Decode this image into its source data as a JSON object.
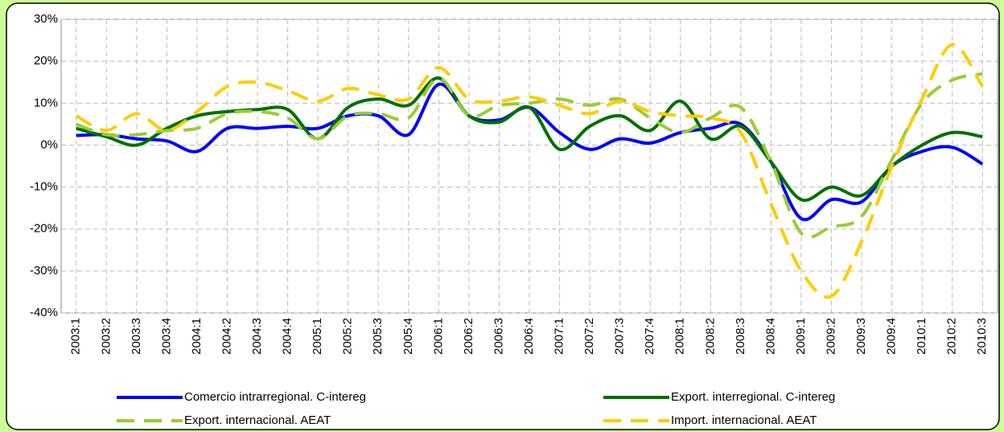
{
  "chart_data": {
    "type": "line",
    "categories": [
      "2003:1",
      "2003:2",
      "2003:3",
      "2003:4",
      "2004:1",
      "2004:2",
      "2004:3",
      "2004:4",
      "2005:1",
      "2005:2",
      "2005:3",
      "2005:4",
      "2006:1",
      "2006:2",
      "2006:3",
      "2006:4",
      "2007:1",
      "2007:2",
      "2007:3",
      "2007:4",
      "2008:1",
      "2008:2",
      "2008:3",
      "2008:4",
      "2009:1",
      "2009:2",
      "2009:3",
      "2009:4",
      "2010:1",
      "2010:2",
      "2010:3"
    ],
    "series": [
      {
        "name": "Comercio intrarregional. C-intereg",
        "color": "#0000ff",
        "dash": false,
        "values": [
          2.3,
          2.5,
          1.5,
          1,
          -1.5,
          4,
          4,
          4.5,
          4,
          7,
          7,
          2.5,
          14.5,
          7,
          6,
          9,
          3,
          -1,
          1.5,
          0.5,
          3,
          4,
          5,
          -4,
          -17.5,
          -13,
          -13.5,
          -5,
          -1.5,
          -0.5,
          -4.5
        ]
      },
      {
        "name": "Export. interregional. C-intereg",
        "color": "#007000",
        "dash": false,
        "values": [
          4,
          2,
          0,
          4,
          7,
          8,
          8.5,
          8.5,
          1.5,
          9,
          11,
          9.5,
          16,
          7,
          5.5,
          9,
          -1,
          4.5,
          7,
          3.5,
          10.5,
          1.5,
          4.5,
          -4,
          -13,
          -10,
          -12,
          -5,
          0,
          3,
          2
        ]
      },
      {
        "name": "Export. internacional. AEAT",
        "color": "#99cc33",
        "dash": true,
        "values": [
          5,
          2.5,
          2.5,
          3.5,
          4,
          7.5,
          8,
          6.5,
          1.5,
          7,
          7.5,
          6.5,
          16,
          7,
          9.5,
          10,
          11,
          9.5,
          11,
          6.5,
          3,
          6.5,
          9,
          -4,
          -21,
          -19.5,
          -17,
          -3.5,
          10,
          15.5,
          17
        ]
      },
      {
        "name": "Import. internacional. AEAT",
        "color": "#ffcc00",
        "dash": true,
        "values": [
          7,
          3.5,
          7.5,
          3.5,
          8,
          14,
          15,
          13,
          10.5,
          13.5,
          12,
          11,
          18.5,
          11,
          10.5,
          11.5,
          9.5,
          7.5,
          10.5,
          8,
          7,
          6.5,
          3,
          -14,
          -30,
          -36,
          -23,
          -5,
          11,
          24,
          14
        ]
      }
    ],
    "ylim": [
      -40,
      30
    ],
    "yticks": [
      {
        "value": -40,
        "label": "-40%"
      },
      {
        "value": -30,
        "label": "-30%"
      },
      {
        "value": -20,
        "label": "-20%"
      },
      {
        "value": -10,
        "label": "-10%"
      },
      {
        "value": 0,
        "label": "0%"
      },
      {
        "value": 10,
        "label": "10%"
      },
      {
        "value": 20,
        "label": "20%"
      },
      {
        "value": 30,
        "label": "30%"
      }
    ],
    "grid": true,
    "smooth": true,
    "legend": "bottom"
  }
}
